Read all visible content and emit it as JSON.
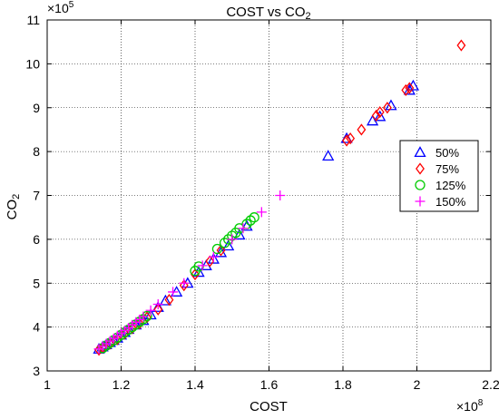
{
  "chart_data": {
    "type": "scatter",
    "title": "COST vs CO2",
    "title_main": "COST vs CO",
    "title_sub": "2",
    "xlabel": "COST",
    "ylabel_main": "CO",
    "ylabel_sub": "2",
    "x_multiplier_base": "×10",
    "x_multiplier_exp": "8",
    "y_multiplier_base": "×10",
    "y_multiplier_exp": "5",
    "xlim": [
      1.0,
      2.2
    ],
    "ylim": [
      3,
      11
    ],
    "xticks": [
      "1",
      "1.2",
      "1.4",
      "1.6",
      "1.8",
      "2",
      "2.2"
    ],
    "yticks": [
      "3",
      "4",
      "5",
      "6",
      "7",
      "8",
      "9",
      "10",
      "11"
    ],
    "grid": true,
    "legend_position": "right",
    "series": [
      {
        "name": "50%",
        "marker": "triangle",
        "color": "#0000ff",
        "x": [
          1.14,
          1.15,
          1.16,
          1.17,
          1.18,
          1.19,
          1.2,
          1.21,
          1.22,
          1.24,
          1.26,
          1.28,
          1.3,
          1.32,
          1.35,
          1.38,
          1.41,
          1.43,
          1.45,
          1.47,
          1.49,
          1.52,
          1.54,
          1.76,
          1.81,
          1.88,
          1.9,
          1.93,
          1.98,
          1.99
        ],
        "y": [
          3.5,
          3.55,
          3.6,
          3.65,
          3.7,
          3.75,
          3.82,
          3.88,
          3.95,
          4.05,
          4.15,
          4.28,
          4.45,
          4.6,
          4.8,
          5.0,
          5.25,
          5.4,
          5.55,
          5.7,
          5.85,
          6.1,
          6.3,
          7.9,
          8.3,
          8.7,
          8.8,
          9.05,
          9.4,
          9.5
        ]
      },
      {
        "name": "75%",
        "marker": "diamond",
        "color": "#ff0000",
        "x": [
          1.14,
          1.15,
          1.17,
          1.19,
          1.21,
          1.23,
          1.25,
          1.27,
          1.3,
          1.33,
          1.37,
          1.4,
          1.44,
          1.47,
          1.81,
          1.82,
          1.85,
          1.89,
          1.9,
          1.92,
          1.97,
          1.98,
          2.12
        ],
        "y": [
          3.48,
          3.53,
          3.62,
          3.72,
          3.85,
          3.97,
          4.08,
          4.22,
          4.4,
          4.62,
          4.95,
          5.2,
          5.5,
          5.75,
          8.25,
          8.3,
          8.5,
          8.82,
          8.9,
          9.0,
          9.4,
          9.45,
          10.42
        ]
      },
      {
        "name": "125%",
        "marker": "circle",
        "color": "#00cc00",
        "x": [
          1.15,
          1.16,
          1.17,
          1.18,
          1.19,
          1.2,
          1.21,
          1.22,
          1.23,
          1.24,
          1.25,
          1.26,
          1.27,
          1.4,
          1.41,
          1.46,
          1.48,
          1.49,
          1.5,
          1.51,
          1.52,
          1.54,
          1.55,
          1.56
        ],
        "y": [
          3.52,
          3.58,
          3.64,
          3.7,
          3.76,
          3.82,
          3.88,
          3.94,
          4.0,
          4.06,
          4.12,
          4.18,
          4.25,
          5.28,
          5.38,
          5.78,
          5.92,
          6.0,
          6.08,
          6.15,
          6.25,
          6.35,
          6.43,
          6.5
        ]
      },
      {
        "name": "150%",
        "marker": "plus",
        "color": "#ff00ff",
        "x": [
          1.14,
          1.15,
          1.16,
          1.17,
          1.18,
          1.19,
          1.2,
          1.21,
          1.22,
          1.23,
          1.24,
          1.25,
          1.26,
          1.28,
          1.3,
          1.34,
          1.37,
          1.42,
          1.45,
          1.5,
          1.53,
          1.58,
          1.63
        ],
        "y": [
          3.5,
          3.56,
          3.62,
          3.68,
          3.74,
          3.8,
          3.86,
          3.92,
          3.98,
          4.05,
          4.11,
          4.17,
          4.24,
          4.38,
          4.52,
          4.8,
          5.0,
          5.4,
          5.6,
          6.0,
          6.25,
          6.62,
          7.0
        ]
      }
    ]
  }
}
